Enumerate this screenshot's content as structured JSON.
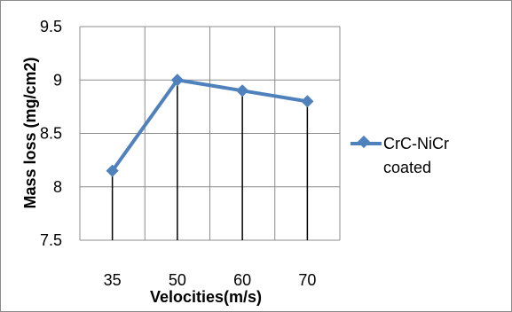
{
  "chart_data": {
    "type": "line",
    "categories": [
      "35",
      "50",
      "60",
      "70"
    ],
    "series": [
      {
        "name": "CrC-NiCr coated",
        "values": [
          8.15,
          9.0,
          8.9,
          8.8
        ],
        "color": "#4f81bd"
      }
    ],
    "xlabel": "Velocities(m/s)",
    "ylabel": "Mass  loss (mg/cm2)",
    "ylim": [
      7.5,
      9.5
    ],
    "yticks": [
      "7.5",
      "8",
      "8.5",
      "9",
      "9.5"
    ],
    "grid": true,
    "legend": "right",
    "legend_lines": [
      "CrC-NiCr",
      "coated"
    ],
    "drop_lines": true
  }
}
